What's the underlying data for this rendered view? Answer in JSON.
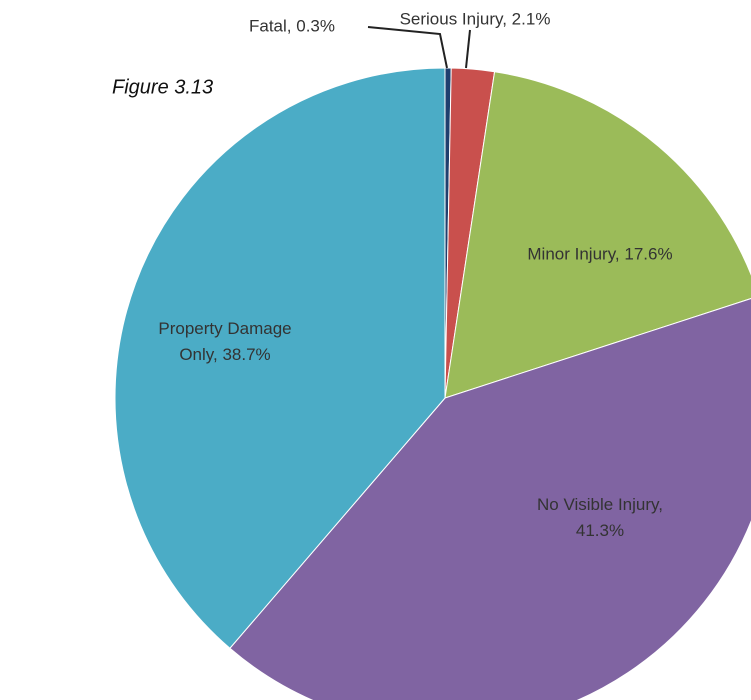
{
  "chart_data": {
    "type": "pie",
    "title": "Figure 3.13",
    "values": [
      0.3,
      2.1,
      17.6,
      41.3,
      38.7
    ],
    "value_labels": [
      "Fatal, 0.3%",
      "Serious Injury, 2.1%",
      "Minor Injury, 17.6%",
      "No Visible Injury,\n41.3%",
      "Property Damage\nOnly, 38.7%"
    ],
    "colors": [
      "#1f3f6e",
      "#c9504d",
      "#9bbb59",
      "#8064a2",
      "#4bacc6"
    ]
  }
}
